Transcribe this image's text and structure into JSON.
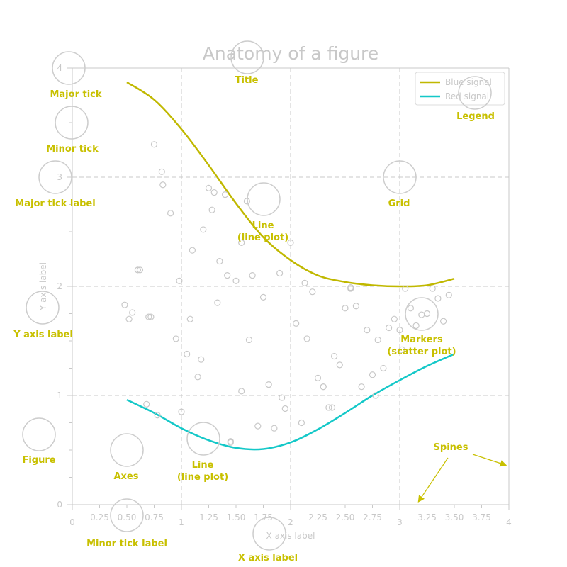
{
  "colors": {
    "annotation": "#c8c000",
    "muted": "#c8c8c8",
    "blue_signal": "#c0b800",
    "red_signal": "#14c8c8",
    "marker": "#c8c8c8",
    "grid": "#c8c8c8"
  },
  "chart_data": {
    "type": "line",
    "title": "Anatomy of a figure",
    "xlabel": "X axis label",
    "ylabel": "Y axis label",
    "xlim": [
      0,
      4
    ],
    "ylim": [
      0,
      4
    ],
    "grid": true,
    "legend_position": "top-right",
    "major_x_ticks": [
      "0",
      "1",
      "2",
      "3",
      "4"
    ],
    "minor_x_ticks": [
      "0.25",
      "0.50",
      "0.75",
      "1.25",
      "1.50",
      "1.75",
      "2.25",
      "2.50",
      "2.75",
      "3.25",
      "3.50",
      "3.75"
    ],
    "major_y_ticks": [
      "0",
      "1",
      "2",
      "3",
      "4"
    ],
    "series": [
      {
        "name": "Blue signal",
        "kind": "line",
        "x": [
          0.5,
          0.75,
          1.0,
          1.25,
          1.5,
          1.75,
          2.0,
          2.25,
          2.5,
          2.75,
          3.0,
          3.25,
          3.5
        ],
        "y": [
          3.87,
          3.71,
          3.44,
          3.11,
          2.76,
          2.45,
          2.24,
          2.1,
          2.04,
          2.01,
          2.0,
          2.01,
          2.07
        ]
      },
      {
        "name": "Red signal",
        "kind": "line",
        "x": [
          0.5,
          0.75,
          1.0,
          1.25,
          1.5,
          1.75,
          2.0,
          2.25,
          2.5,
          2.75,
          3.0,
          3.25,
          3.5
        ],
        "y": [
          0.96,
          0.84,
          0.7,
          0.59,
          0.52,
          0.51,
          0.57,
          0.69,
          0.84,
          1.0,
          1.14,
          1.27,
          1.38
        ]
      },
      {
        "name": "",
        "kind": "scatter",
        "x": [
          0.48,
          0.55,
          0.6,
          0.52,
          0.72,
          0.75,
          0.82,
          0.83,
          0.9,
          0.95,
          0.98,
          1.05,
          1.08,
          1.1,
          1.15,
          1.18,
          1.2,
          1.25,
          1.28,
          1.3,
          1.33,
          1.35,
          1.4,
          1.42,
          1.45,
          1.5,
          1.55,
          1.6,
          1.62,
          1.65,
          1.7,
          1.75,
          1.8,
          1.85,
          1.9,
          1.95,
          2.0,
          2.05,
          2.1,
          2.15,
          2.2,
          2.25,
          2.3,
          2.35,
          2.4,
          2.45,
          2.5,
          2.55,
          2.6,
          2.65,
          2.7,
          2.75,
          2.8,
          2.85,
          2.9,
          2.95,
          3.0,
          3.05,
          3.1,
          3.15,
          3.2,
          3.25,
          3.3,
          3.35,
          3.4,
          3.45,
          0.68,
          0.7,
          0.78,
          1.0,
          0.62,
          1.45,
          1.55,
          1.92,
          2.13,
          2.3,
          2.38,
          2.55,
          2.78,
          3.02
        ],
        "y": [
          1.83,
          1.76,
          2.15,
          1.7,
          1.72,
          3.3,
          3.05,
          2.93,
          2.67,
          1.52,
          2.05,
          1.38,
          1.7,
          2.33,
          1.17,
          1.33,
          2.52,
          2.9,
          2.7,
          2.86,
          1.85,
          2.23,
          2.84,
          2.1,
          0.58,
          2.05,
          2.4,
          2.78,
          1.51,
          2.1,
          0.72,
          1.9,
          1.1,
          0.7,
          2.12,
          0.88,
          2.4,
          1.66,
          0.75,
          1.52,
          1.95,
          1.16,
          1.08,
          0.89,
          1.36,
          1.28,
          1.8,
          1.99,
          1.82,
          1.08,
          1.6,
          1.19,
          1.51,
          1.25,
          1.62,
          1.7,
          1.6,
          1.98,
          1.8,
          1.64,
          1.74,
          1.75,
          1.98,
          1.89,
          1.68,
          1.92,
          0.92,
          1.72,
          0.82,
          0.85,
          2.15,
          0.57,
          1.04,
          0.98,
          2.03,
          1.08,
          0.89,
          1.98,
          1.0,
          1.42
        ]
      }
    ]
  },
  "annotations": [
    {
      "key": "major_tick",
      "text": "Major tick"
    },
    {
      "key": "minor_tick",
      "text": "Minor tick"
    },
    {
      "key": "major_tick_label",
      "text": "Major tick label"
    },
    {
      "key": "title",
      "text": "Title"
    },
    {
      "key": "legend",
      "text": "Legend"
    },
    {
      "key": "grid",
      "text": "Grid"
    },
    {
      "key": "line_top",
      "text": "Line\n(line plot)"
    },
    {
      "key": "y_axis_label",
      "text": "Y axis label"
    },
    {
      "key": "markers",
      "text": "Markers\n(scatter plot)"
    },
    {
      "key": "spines",
      "text": "Spines"
    },
    {
      "key": "figure",
      "text": "Figure"
    },
    {
      "key": "axes",
      "text": "Axes"
    },
    {
      "key": "line_bottom",
      "text": "Line\n(line plot)"
    },
    {
      "key": "minor_tick_label",
      "text": "Minor tick label"
    },
    {
      "key": "x_axis_label",
      "text": "X axis label"
    }
  ]
}
